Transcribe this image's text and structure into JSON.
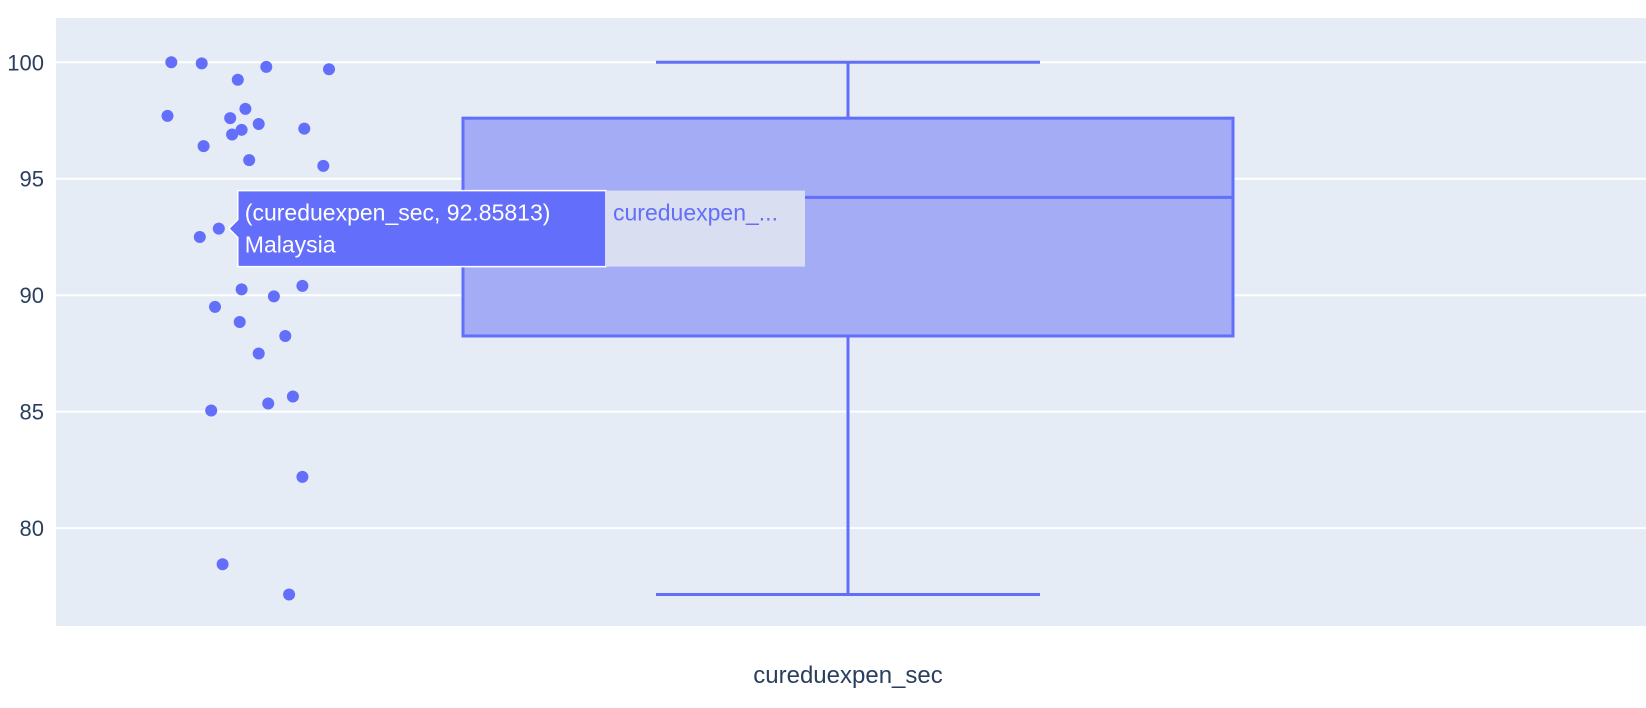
{
  "colors": {
    "plot_bg": "#e5ecf6",
    "grid": "#ffffff",
    "series": "#636efa",
    "box_fill": "#a3acf4",
    "hover_name_bg": "#d9def0",
    "text": "#2a3f5f"
  },
  "chart_data": {
    "type": "box",
    "x_category": "cureduexpen_sec",
    "xlabel": "cureduexpen_sec",
    "ylim": [
      75.8,
      101.9
    ],
    "y_ticks": [
      80,
      85,
      90,
      95,
      100
    ],
    "y_tick_labels": [
      "80",
      "85",
      "90",
      "95",
      "100"
    ],
    "grid": true,
    "box": {
      "min": 77.15,
      "q1": 88.25,
      "median": 94.2,
      "q3": 97.6,
      "max": 100
    },
    "points": [
      {
        "jitter": 0.27,
        "y": 100.0
      },
      {
        "jitter": 0.43,
        "y": 99.95
      },
      {
        "jitter": 0.62,
        "y": 99.25
      },
      {
        "jitter": 0.77,
        "y": 99.8
      },
      {
        "jitter": 1.1,
        "y": 99.7
      },
      {
        "jitter": 0.25,
        "y": 97.7
      },
      {
        "jitter": 0.66,
        "y": 98.0
      },
      {
        "jitter": 0.58,
        "y": 97.6
      },
      {
        "jitter": 0.73,
        "y": 97.35
      },
      {
        "jitter": 0.64,
        "y": 97.1
      },
      {
        "jitter": 0.59,
        "y": 96.9
      },
      {
        "jitter": 0.97,
        "y": 97.15
      },
      {
        "jitter": 0.44,
        "y": 96.4
      },
      {
        "jitter": 0.68,
        "y": 95.8
      },
      {
        "jitter": 1.07,
        "y": 95.55
      },
      {
        "jitter": 0.42,
        "y": 92.5
      },
      {
        "jitter": 0.52,
        "y": 92.86
      },
      {
        "jitter": 0.64,
        "y": 90.25
      },
      {
        "jitter": 0.81,
        "y": 89.95
      },
      {
        "jitter": 0.96,
        "y": 90.4
      },
      {
        "jitter": 0.5,
        "y": 89.5
      },
      {
        "jitter": 0.63,
        "y": 88.85
      },
      {
        "jitter": 0.87,
        "y": 88.25
      },
      {
        "jitter": 0.73,
        "y": 87.5
      },
      {
        "jitter": 0.48,
        "y": 85.05
      },
      {
        "jitter": 0.78,
        "y": 85.35
      },
      {
        "jitter": 0.91,
        "y": 85.65
      },
      {
        "jitter": 0.96,
        "y": 82.2
      },
      {
        "jitter": 0.54,
        "y": 78.45
      },
      {
        "jitter": 0.89,
        "y": 77.15
      }
    ],
    "hover": {
      "point_index": 16,
      "line1": "(cureduexpen_sec, 92.85813)",
      "line2": "Malaysia",
      "trace_name": "cureduexpen_..."
    }
  }
}
